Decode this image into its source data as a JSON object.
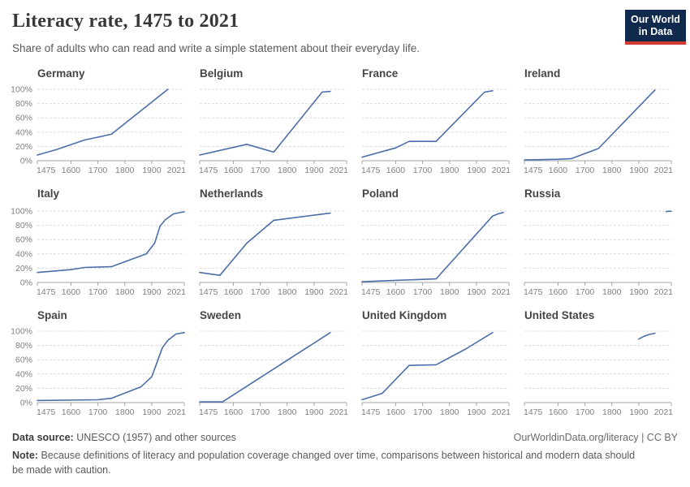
{
  "header": {
    "title": "Literacy rate, 1475 to 2021",
    "subtitle": "Share of adults who can read and write a simple statement about their everyday life.",
    "logo": {
      "line1": "Our World",
      "line2": "in Data"
    }
  },
  "chart_data": {
    "type": "line",
    "layout": {
      "rows": 3,
      "cols": 4
    },
    "title": "Literacy rate, 1475 to 2021",
    "xlabel": "",
    "ylabel": "",
    "x_range": [
      1475,
      2021
    ],
    "x_ticks": [
      1475,
      1600,
      1700,
      1800,
      1900,
      2021
    ],
    "y_range": [
      0,
      100
    ],
    "y_ticks": [
      0,
      20,
      40,
      60,
      80,
      100
    ],
    "y_tick_suffix": "%",
    "grid": "horizontal-dashed",
    "legend": "none",
    "series": [
      {
        "name": "Germany",
        "points": [
          [
            1475,
            8
          ],
          [
            1550,
            16
          ],
          [
            1650,
            29
          ],
          [
            1700,
            33
          ],
          [
            1750,
            37
          ],
          [
            1960,
            100
          ]
        ]
      },
      {
        "name": "Belgium",
        "points": [
          [
            1475,
            8
          ],
          [
            1650,
            23
          ],
          [
            1750,
            12
          ],
          [
            1930,
            96
          ],
          [
            1960,
            97
          ]
        ]
      },
      {
        "name": "France",
        "points": [
          [
            1475,
            5
          ],
          [
            1600,
            18
          ],
          [
            1650,
            27
          ],
          [
            1750,
            27
          ],
          [
            1930,
            96
          ],
          [
            1960,
            98
          ]
        ]
      },
      {
        "name": "Ireland",
        "points": [
          [
            1475,
            1
          ],
          [
            1600,
            2
          ],
          [
            1650,
            3
          ],
          [
            1750,
            17
          ],
          [
            1960,
            99
          ]
        ]
      },
      {
        "name": "Italy",
        "points": [
          [
            1475,
            14
          ],
          [
            1600,
            18
          ],
          [
            1650,
            21
          ],
          [
            1750,
            22
          ],
          [
            1880,
            40
          ],
          [
            1911,
            55
          ],
          [
            1931,
            79
          ],
          [
            1951,
            88
          ],
          [
            1981,
            96
          ],
          [
            2021,
            99
          ]
        ]
      },
      {
        "name": "Netherlands",
        "points": [
          [
            1475,
            14
          ],
          [
            1550,
            10
          ],
          [
            1650,
            55
          ],
          [
            1750,
            87
          ],
          [
            1960,
            97
          ]
        ]
      },
      {
        "name": "Poland",
        "points": [
          [
            1475,
            1
          ],
          [
            1600,
            3
          ],
          [
            1750,
            5
          ],
          [
            1960,
            93
          ],
          [
            1980,
            96
          ],
          [
            2000,
            98
          ]
        ]
      },
      {
        "name": "Russia",
        "points": [
          [
            2002,
            99.2
          ],
          [
            2010,
            99.7
          ],
          [
            2021,
            99.7
          ]
        ]
      },
      {
        "name": "Spain",
        "points": [
          [
            1475,
            3
          ],
          [
            1700,
            4
          ],
          [
            1750,
            6
          ],
          [
            1860,
            22
          ],
          [
            1900,
            36
          ],
          [
            1940,
            77
          ],
          [
            1960,
            87
          ],
          [
            1990,
            96
          ],
          [
            2021,
            98
          ]
        ]
      },
      {
        "name": "Sweden",
        "points": [
          [
            1475,
            1
          ],
          [
            1560,
            1
          ],
          [
            1960,
            98
          ]
        ]
      },
      {
        "name": "United Kingdom",
        "points": [
          [
            1475,
            4
          ],
          [
            1550,
            13
          ],
          [
            1650,
            52
          ],
          [
            1750,
            53
          ],
          [
            1860,
            75
          ],
          [
            1960,
            98
          ]
        ]
      },
      {
        "name": "United States",
        "points": [
          [
            1900,
            89
          ],
          [
            1920,
            93
          ],
          [
            1940,
            95.5
          ],
          [
            1960,
            97
          ]
        ]
      }
    ]
  },
  "footer": {
    "source_label": "Data source:",
    "source_text": " UNESCO (1957) and other sources",
    "link_text": "OurWorldinData.org/literacy | CC BY",
    "note_label": "Note:",
    "note_line1": "Because definitions of literacy and population coverage changed over time, comparisons between historical and modern data should",
    "note_line2": "be made with caution."
  },
  "colors": {
    "line": "#4C6EA8",
    "grid": "#DCDCDC",
    "axis": "#A5A5A5",
    "tick_text": "#808080",
    "panel_title": "#454545",
    "logo_navy": "#102A4E",
    "logo_red": "#CF3A31"
  }
}
